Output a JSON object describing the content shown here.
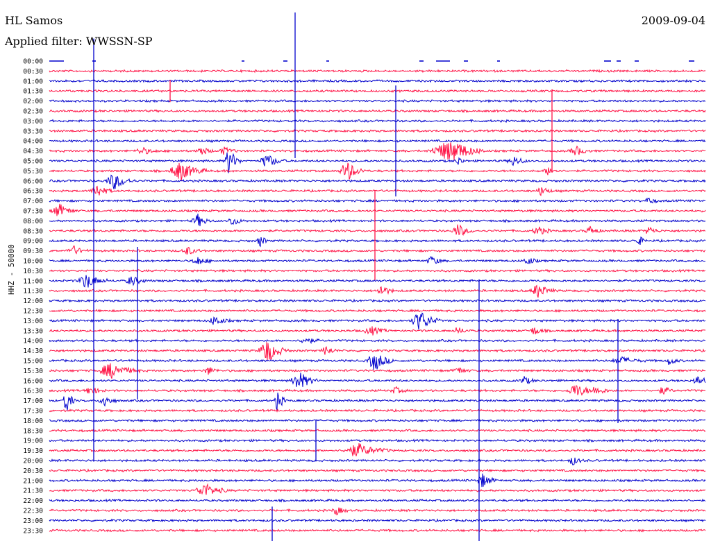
{
  "header": {
    "station": "HL Samos",
    "date": "2009-09-04",
    "filter_label": "Applied filter: WWSSN-SP"
  },
  "chart_data": {
    "type": "line",
    "title": "HL Samos",
    "subtitle": "Applied filter: WWSSN-SP",
    "date": "2009-09-04",
    "ylabel": "HHZ - 50000",
    "xlabel": "",
    "rows": [
      "00:00",
      "00:30",
      "01:00",
      "01:30",
      "02:00",
      "02:30",
      "03:00",
      "03:30",
      "04:00",
      "04:30",
      "05:00",
      "05:30",
      "06:00",
      "06:30",
      "07:00",
      "07:30",
      "08:00",
      "08:30",
      "09:00",
      "09:30",
      "10:00",
      "10:30",
      "11:00",
      "11:30",
      "12:00",
      "12:30",
      "13:00",
      "13:30",
      "14:00",
      "14:30",
      "15:00",
      "15:30",
      "16:00",
      "16:30",
      "17:00",
      "17:30",
      "18:00",
      "18:30",
      "19:00",
      "19:30",
      "20:00",
      "20:30",
      "21:00",
      "21:30",
      "22:00",
      "22:30",
      "23:00",
      "23:30"
    ],
    "trace_colors": [
      "#0000cc",
      "#ff1144"
    ],
    "row_minutes": 30,
    "scale_counts": 50000,
    "grid": false
  }
}
